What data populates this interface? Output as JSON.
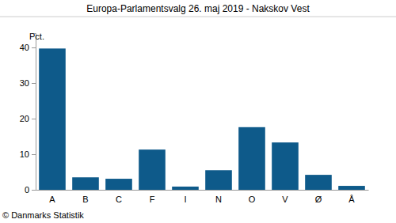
{
  "chart_data": {
    "type": "bar",
    "title": "Europa-Parlamentsvalg 26. maj 2019 - Nakskov Vest",
    "y_label": "Pct.",
    "source": "© Danmarks Statistik",
    "categories": [
      "A",
      "B",
      "C",
      "F",
      "I",
      "N",
      "O",
      "V",
      "Ø",
      "Å"
    ],
    "values": [
      39.7,
      3.5,
      3.1,
      11.3,
      0.9,
      5.5,
      17.6,
      13.3,
      4.2,
      1.1
    ],
    "color": "#0e5a8a",
    "ylim": [
      0,
      44
    ],
    "yticks": [
      0,
      10,
      20,
      30,
      40
    ],
    "grid": false
  }
}
